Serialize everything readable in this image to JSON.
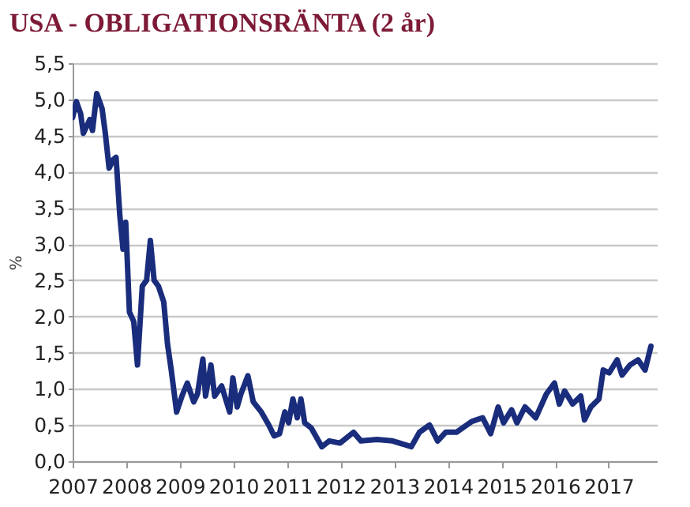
{
  "chart_data": {
    "type": "line",
    "title": "USA - OBLIGATIONSRÄNTA (2 år)",
    "ylabel": "%",
    "x": [
      2007.0,
      2007.07,
      2007.15,
      2007.2,
      2007.32,
      2007.37,
      2007.45,
      2007.55,
      2007.61,
      2007.68,
      2007.76,
      2007.81,
      2007.88,
      2007.94,
      2007.99,
      2008.06,
      2008.14,
      2008.21,
      2008.3,
      2008.38,
      2008.45,
      2008.52,
      2008.6,
      2008.7,
      2008.77,
      2008.84,
      2008.94,
      2009.04,
      2009.14,
      2009.26,
      2009.33,
      2009.43,
      2009.48,
      2009.58,
      2009.65,
      2009.78,
      2009.93,
      2009.99,
      2010.07,
      2010.14,
      2010.27,
      2010.37,
      2010.52,
      2010.66,
      2010.76,
      2010.86,
      2010.96,
      2011.03,
      2011.11,
      2011.19,
      2011.26,
      2011.33,
      2011.45,
      2011.65,
      2011.79,
      2011.99,
      2012.24,
      2012.38,
      2012.68,
      2012.97,
      2013.32,
      2013.47,
      2013.66,
      2013.81,
      2013.96,
      2014.16,
      2014.45,
      2014.65,
      2014.8,
      2014.94,
      2015.04,
      2015.19,
      2015.29,
      2015.44,
      2015.64,
      2015.84,
      2015.99,
      2016.08,
      2016.18,
      2016.33,
      2016.48,
      2016.55,
      2016.67,
      2016.82,
      2016.9,
      2017.01,
      2017.16,
      2017.25,
      2017.4,
      2017.55,
      2017.68,
      2017.79
    ],
    "series": [
      {
        "color": "#1a2d7c",
        "values": [
          4.75,
          4.97,
          4.8,
          4.53,
          4.72,
          4.57,
          5.08,
          4.87,
          4.53,
          4.05,
          4.17,
          4.2,
          3.4,
          2.93,
          3.3,
          2.06,
          1.93,
          1.33,
          2.42,
          2.5,
          3.05,
          2.5,
          2.42,
          2.2,
          1.62,
          1.26,
          0.68,
          0.9,
          1.08,
          0.82,
          0.93,
          1.41,
          0.9,
          1.33,
          0.9,
          1.04,
          0.68,
          1.15,
          0.75,
          0.93,
          1.18,
          0.82,
          0.68,
          0.5,
          0.35,
          0.38,
          0.68,
          0.53,
          0.86,
          0.6,
          0.86,
          0.53,
          0.46,
          0.2,
          0.28,
          0.25,
          0.4,
          0.28,
          0.3,
          0.28,
          0.2,
          0.4,
          0.5,
          0.28,
          0.4,
          0.4,
          0.55,
          0.6,
          0.38,
          0.75,
          0.53,
          0.71,
          0.53,
          0.75,
          0.6,
          0.93,
          1.08,
          0.79,
          0.97,
          0.79,
          0.9,
          0.57,
          0.75,
          0.86,
          1.26,
          1.22,
          1.4,
          1.19,
          1.33,
          1.4,
          1.26,
          1.59
        ]
      }
    ],
    "xlim": [
      2007,
      2017.9
    ],
    "xticks": [
      2007,
      2008,
      2009,
      2010,
      2011,
      2012,
      2013,
      2014,
      2015,
      2016,
      2017
    ],
    "ylim": [
      0,
      5.5
    ],
    "yticks": [
      {
        "value": 0,
        "label": "0,0"
      },
      {
        "value": 0.5,
        "label": "0,5"
      },
      {
        "value": 1,
        "label": "1,0"
      },
      {
        "value": 1.5,
        "label": "1,5"
      },
      {
        "value": 2,
        "label": "2,0"
      },
      {
        "value": 2.5,
        "label": "2,5"
      },
      {
        "value": 3,
        "label": "3,0"
      },
      {
        "value": 3.5,
        "label": "3,5"
      },
      {
        "value": 4,
        "label": "4,0"
      },
      {
        "value": 4.5,
        "label": "4,5"
      },
      {
        "value": 5,
        "label": "5,0"
      },
      {
        "value": 5.5,
        "label": "5,5"
      }
    ],
    "grid": "y",
    "line_style": "solid"
  }
}
